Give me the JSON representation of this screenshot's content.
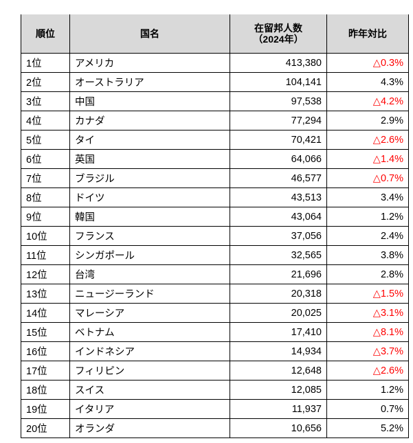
{
  "table": {
    "headers": {
      "rank": "順位",
      "country": "国名",
      "residents_line1": "在留邦人数",
      "residents_line2": "（2024年）",
      "yoy": "昨年対比"
    },
    "colors": {
      "negative": "#ff0000",
      "header_bg": "#d9d9d9",
      "border": "#000000"
    },
    "rows": [
      {
        "rank": "1位",
        "country": "アメリカ",
        "residents": "413,380",
        "yoy": "△0.3%",
        "negative": true
      },
      {
        "rank": "2位",
        "country": "オーストラリア",
        "residents": "104,141",
        "yoy": "4.3%",
        "negative": false
      },
      {
        "rank": "3位",
        "country": "中国",
        "residents": "97,538",
        "yoy": "△4.2%",
        "negative": true
      },
      {
        "rank": "4位",
        "country": "カナダ",
        "residents": "77,294",
        "yoy": "2.9%",
        "negative": false
      },
      {
        "rank": "5位",
        "country": "タイ",
        "residents": "70,421",
        "yoy": "△2.6%",
        "negative": true
      },
      {
        "rank": "6位",
        "country": "英国",
        "residents": "64,066",
        "yoy": "△1.4%",
        "negative": true
      },
      {
        "rank": "7位",
        "country": "ブラジル",
        "residents": "46,577",
        "yoy": "△0.7%",
        "negative": true
      },
      {
        "rank": "8位",
        "country": "ドイツ",
        "residents": "43,513",
        "yoy": "3.4%",
        "negative": false
      },
      {
        "rank": "9位",
        "country": "韓国",
        "residents": "43,064",
        "yoy": "1.2%",
        "negative": false
      },
      {
        "rank": "10位",
        "country": "フランス",
        "residents": "37,056",
        "yoy": "2.4%",
        "negative": false
      },
      {
        "rank": "11位",
        "country": "シンガポール",
        "residents": "32,565",
        "yoy": "3.8%",
        "negative": false
      },
      {
        "rank": "12位",
        "country": "台湾",
        "residents": "21,696",
        "yoy": "2.8%",
        "negative": false
      },
      {
        "rank": "13位",
        "country": "ニュージーランド",
        "residents": "20,318",
        "yoy": "△1.5%",
        "negative": true
      },
      {
        "rank": "14位",
        "country": "マレーシア",
        "residents": "20,025",
        "yoy": "△3.1%",
        "negative": true
      },
      {
        "rank": "15位",
        "country": "ベトナム",
        "residents": "17,410",
        "yoy": "△8.1%",
        "negative": true
      },
      {
        "rank": "16位",
        "country": "インドネシア",
        "residents": "14,934",
        "yoy": "△3.7%",
        "negative": true
      },
      {
        "rank": "17位",
        "country": "フィリピン",
        "residents": "12,648",
        "yoy": "△2.6%",
        "negative": true
      },
      {
        "rank": "18位",
        "country": "スイス",
        "residents": "12,085",
        "yoy": "1.2%",
        "negative": false
      },
      {
        "rank": "19位",
        "country": "イタリア",
        "residents": "11,937",
        "yoy": "0.7%",
        "negative": false
      },
      {
        "rank": "20位",
        "country": "オランダ",
        "residents": "10,656",
        "yoy": "5.2%",
        "negative": false
      }
    ]
  }
}
